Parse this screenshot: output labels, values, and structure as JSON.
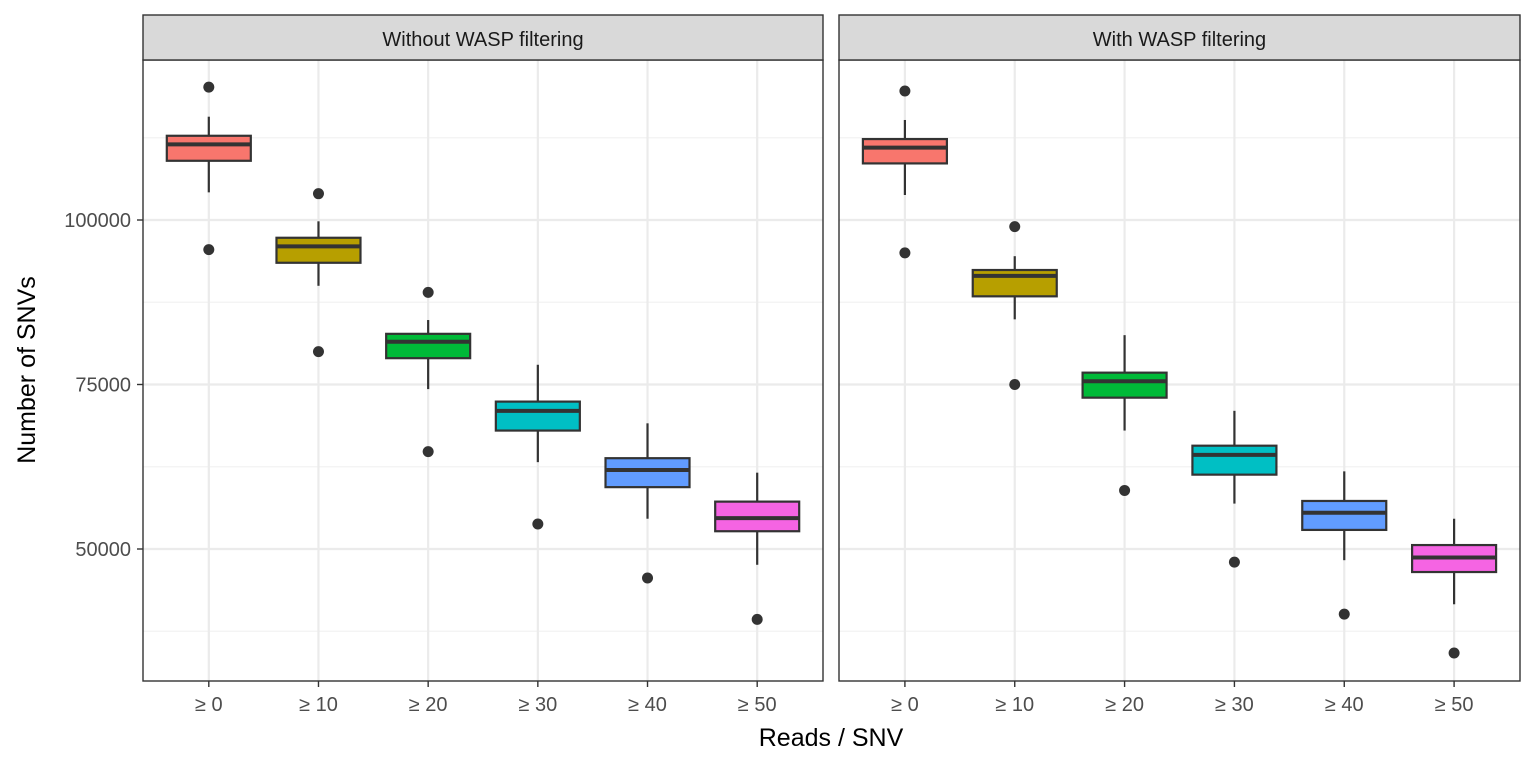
{
  "chart_data": {
    "type": "box",
    "xlabel": "Reads / SNV",
    "ylabel": "Number of SNVs",
    "categories": [
      "≥ 0",
      "≥ 10",
      "≥ 20",
      "≥ 30",
      "≥ 40",
      "≥ 50"
    ],
    "colors": [
      "#F8766D",
      "#B79F00",
      "#00BA38",
      "#00BFC4",
      "#619CFF",
      "#F564E3"
    ],
    "ylim": [
      30000,
      125000
    ],
    "yticks": [
      50000,
      75000,
      100000
    ],
    "ytick_labels": [
      "50000",
      "75000",
      "100000"
    ],
    "grid": true,
    "panels": [
      {
        "title": "Without WASP filtering",
        "boxes": [
          {
            "q1": 109000,
            "median": 111500,
            "q3": 112800,
            "whisker_low": 104200,
            "whisker_high": 115700,
            "outliers": [
              95500,
              120200
            ]
          },
          {
            "q1": 93500,
            "median": 96000,
            "q3": 97300,
            "whisker_low": 90000,
            "whisker_high": 99800,
            "outliers": [
              80000,
              104000
            ]
          },
          {
            "q1": 79000,
            "median": 81500,
            "q3": 82700,
            "whisker_low": 74300,
            "whisker_high": 84800,
            "outliers": [
              64800,
              89000
            ]
          },
          {
            "q1": 68000,
            "median": 71000,
            "q3": 72400,
            "whisker_low": 63200,
            "whisker_high": 78000,
            "outliers": [
              53800
            ]
          },
          {
            "q1": 59400,
            "median": 62000,
            "q3": 63800,
            "whisker_low": 54600,
            "whisker_high": 69100,
            "outliers": [
              45600
            ]
          },
          {
            "q1": 52700,
            "median": 54700,
            "q3": 57200,
            "whisker_low": 47600,
            "whisker_high": 61600,
            "outliers": [
              39300
            ]
          }
        ]
      },
      {
        "title": "With WASP filtering",
        "boxes": [
          {
            "q1": 108600,
            "median": 111000,
            "q3": 112300,
            "whisker_low": 103800,
            "whisker_high": 115200,
            "outliers": [
              95000,
              119600
            ]
          },
          {
            "q1": 88400,
            "median": 91500,
            "q3": 92400,
            "whisker_low": 84900,
            "whisker_high": 94500,
            "outliers": [
              75000,
              99000
            ]
          },
          {
            "q1": 73000,
            "median": 75500,
            "q3": 76800,
            "whisker_low": 68000,
            "whisker_high": 82500,
            "outliers": [
              58900
            ]
          },
          {
            "q1": 61300,
            "median": 64300,
            "q3": 65700,
            "whisker_low": 56900,
            "whisker_high": 71000,
            "outliers": [
              48000
            ]
          },
          {
            "q1": 52900,
            "median": 55500,
            "q3": 57300,
            "whisker_low": 48300,
            "whisker_high": 61800,
            "outliers": [
              40100
            ]
          },
          {
            "q1": 46500,
            "median": 48700,
            "q3": 50600,
            "whisker_low": 41600,
            "whisker_high": 54600,
            "outliers": [
              34200
            ]
          }
        ]
      }
    ]
  }
}
